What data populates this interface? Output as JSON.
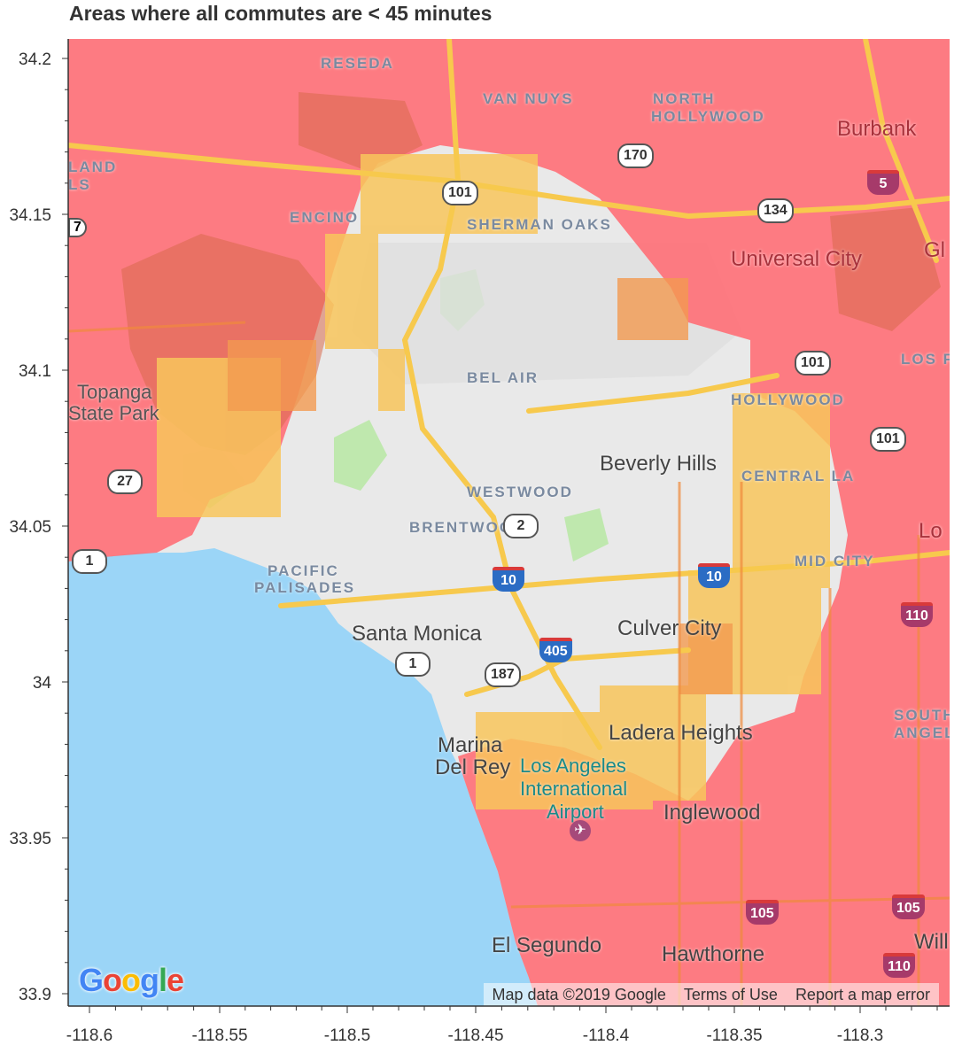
{
  "title": "Areas where all commutes are < 45 minutes",
  "colors": {
    "water": "#9bd5f7",
    "land": "#e9e9e9",
    "park": "#bfe8ae",
    "freeway": "#f7c94d",
    "freeway_red": "#f08a3c",
    "overlay_red": "#ff6b73",
    "overlay_orange": "#f5a23a",
    "overlay_yellow": "#f8c55c",
    "overlay_light": "#f5c9a8"
  },
  "axes": {
    "x_ticks": [
      "-118.6",
      "-118.55",
      "-118.5",
      "-118.45",
      "-118.4",
      "-118.35",
      "-118.3"
    ],
    "y_ticks": [
      "34.2",
      "34.15",
      "34.1",
      "34.05",
      "34",
      "33.95",
      "33.9"
    ]
  },
  "map": {
    "places": [
      {
        "name": "RESEDA",
        "style": "district"
      },
      {
        "name": "VAN NUYS",
        "style": "district"
      },
      {
        "name": "NORTH",
        "style": "district"
      },
      {
        "name": "HOLLYWOOD",
        "style": "district"
      },
      {
        "name": "Burbank",
        "style": "city-red"
      },
      {
        "name": "LAND",
        "style": "district"
      },
      {
        "name": "LS",
        "style": "district"
      },
      {
        "name": "ENCINO",
        "style": "district"
      },
      {
        "name": "SHERMAN OAKS",
        "style": "district"
      },
      {
        "name": "Universal City",
        "style": "city-red"
      },
      {
        "name": "Gl",
        "style": "city-red"
      },
      {
        "name": "LOS FELIZ",
        "style": "district"
      },
      {
        "name": "Topanga",
        "style": "park-label"
      },
      {
        "name": "State Park",
        "style": "park-label"
      },
      {
        "name": "BEL AIR",
        "style": "district"
      },
      {
        "name": "HOLLYWOOD",
        "style": "district"
      },
      {
        "name": "Beverly Hills",
        "style": "city"
      },
      {
        "name": "CENTRAL LA",
        "style": "district"
      },
      {
        "name": "WESTWOOD",
        "style": "district"
      },
      {
        "name": "BRENTWOOD",
        "style": "district"
      },
      {
        "name": "Lo",
        "style": "city-red"
      },
      {
        "name": "PACIFIC",
        "style": "district"
      },
      {
        "name": "PALISADES",
        "style": "district"
      },
      {
        "name": "MID CITY",
        "style": "district"
      },
      {
        "name": "Santa Monica",
        "style": "city"
      },
      {
        "name": "Culver City",
        "style": "city"
      },
      {
        "name": "SOUTH LOS",
        "style": "district"
      },
      {
        "name": "ANGELES",
        "style": "district"
      },
      {
        "name": "Ladera Heights",
        "style": "city"
      },
      {
        "name": "Marina",
        "style": "city"
      },
      {
        "name": "Del Rey",
        "style": "city"
      },
      {
        "name": "Los Angeles",
        "style": "airport"
      },
      {
        "name": "International",
        "style": "airport"
      },
      {
        "name": "Airport",
        "style": "airport"
      },
      {
        "name": "Inglewood",
        "style": "city"
      },
      {
        "name": "El Segundo",
        "style": "city"
      },
      {
        "name": "Hawthorne",
        "style": "city"
      },
      {
        "name": "Will",
        "style": "city"
      }
    ],
    "shields": [
      "101",
      "170",
      "5",
      "134",
      "101",
      "101",
      "27",
      "2",
      "1",
      "10",
      "10",
      "405",
      "187",
      "1",
      "110",
      "105",
      "105",
      "110"
    ],
    "shield_extra": "7",
    "google": "Google",
    "footer": {
      "data": "Map data ©2019 Google",
      "terms": "Terms of Use",
      "report": "Report a map error"
    }
  }
}
